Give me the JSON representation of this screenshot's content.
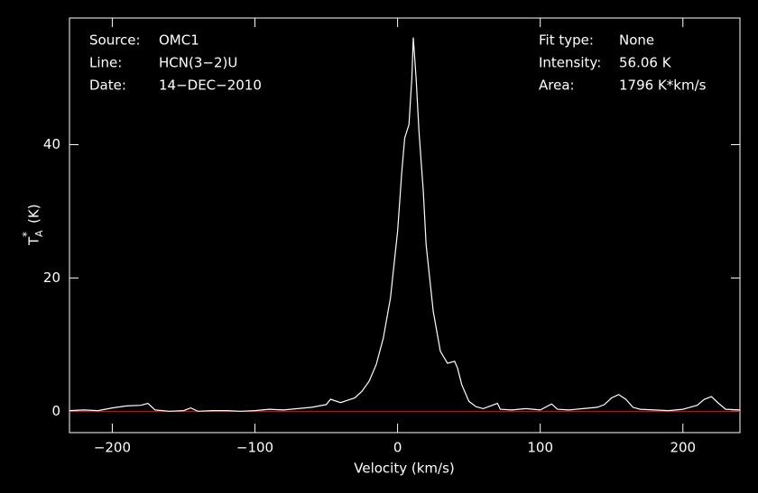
{
  "chart_data": {
    "type": "line",
    "xlabel": "Velocity (km/s)",
    "ylabel": {
      "main": "T",
      "sub": "A",
      "sup": "*",
      "unit": "(K)"
    },
    "annotations": {
      "left": [
        {
          "label": "Source:",
          "value": "OMC1"
        },
        {
          "label": "Line:",
          "value": "HCN(3−2)U"
        },
        {
          "label": "Date:",
          "value": "14−DEC−2010"
        }
      ],
      "right": [
        {
          "label": "Fit type:",
          "value": "None"
        },
        {
          "label": "Intensity:",
          "value": "56.06 K"
        },
        {
          "label": "Area:",
          "value": "1796 K*km/s"
        }
      ]
    },
    "xlim": [
      -230,
      240
    ],
    "ylim": [
      -3.2,
      59
    ],
    "xticks": [
      {
        "value": -200,
        "label": "−200"
      },
      {
        "value": -100,
        "label": "−100"
      },
      0,
      100,
      200
    ],
    "yticks": [
      0,
      20,
      40
    ],
    "baseline": {
      "value": 0,
      "color": "#ff0000"
    },
    "x": [
      -230,
      -220,
      -210,
      -200,
      -190,
      -180,
      -175,
      -170,
      -160,
      -150,
      -145,
      -140,
      -130,
      -120,
      -110,
      -100,
      -90,
      -80,
      -70,
      -60,
      -50,
      -47,
      -40,
      -30,
      -25,
      -20,
      -15,
      -10,
      -5,
      0,
      3,
      5,
      8,
      10,
      11,
      13,
      15,
      18,
      20,
      25,
      30,
      35,
      40,
      42,
      45,
      50,
      55,
      60,
      70,
      72,
      80,
      90,
      100,
      108,
      112,
      120,
      130,
      140,
      145,
      150,
      155,
      160,
      165,
      170,
      180,
      190,
      200,
      210,
      215,
      220,
      225,
      230,
      240
    ],
    "series": [
      {
        "color": "#ffffff",
        "values": [
          0.1,
          0.2,
          0.1,
          0.5,
          0.8,
          0.9,
          1.2,
          0.2,
          0,
          0.1,
          0.5,
          0,
          0.1,
          0.1,
          0,
          0.1,
          0.3,
          0.2,
          0.4,
          0.6,
          1.0,
          1.8,
          1.3,
          2.0,
          3.0,
          4.5,
          7,
          11,
          17,
          27,
          36,
          41,
          43,
          50,
          56.06,
          50,
          42,
          33,
          25,
          15,
          9,
          7.2,
          7.5,
          6.5,
          4,
          1.5,
          0.7,
          0.4,
          1.2,
          0.3,
          0.2,
          0.4,
          0.2,
          1.1,
          0.3,
          0.2,
          0.4,
          0.6,
          1.0,
          2.0,
          2.5,
          1.8,
          0.6,
          0.3,
          0.2,
          0.1,
          0.3,
          0.9,
          1.8,
          2.2,
          1.2,
          0.3,
          0.2
        ]
      }
    ]
  }
}
